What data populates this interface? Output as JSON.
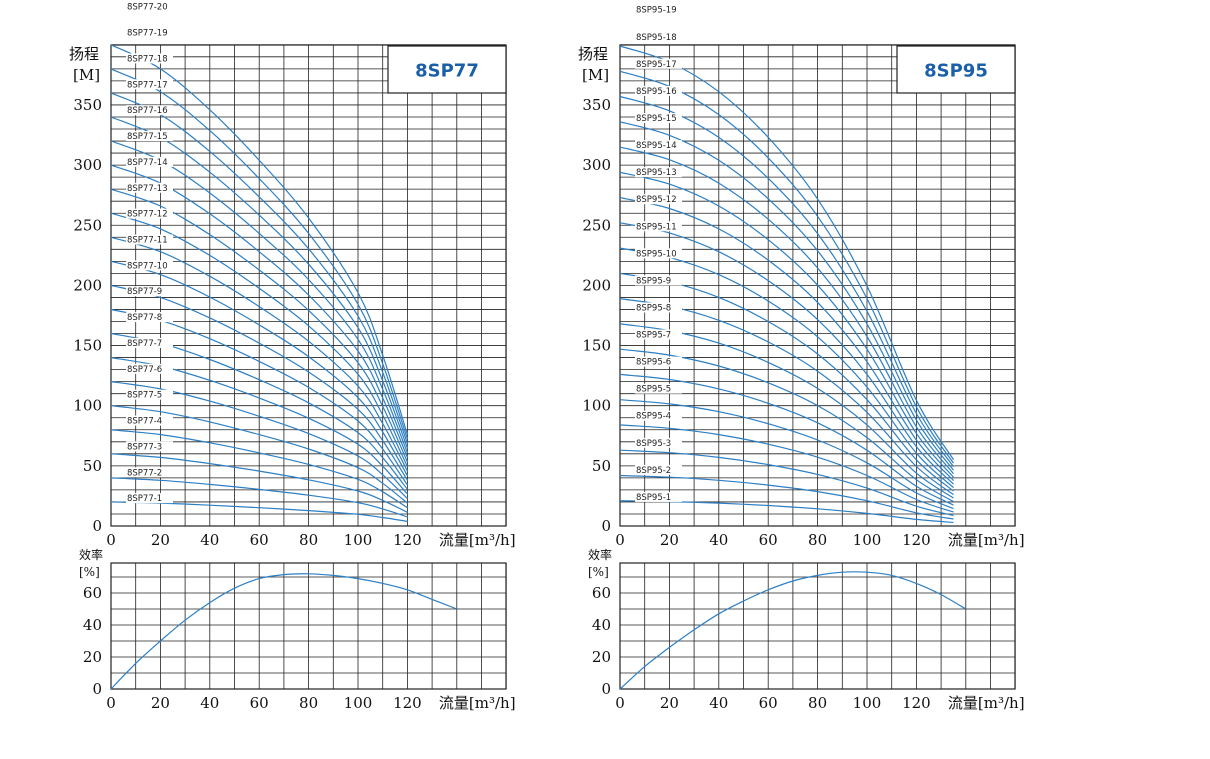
{
  "colors": {
    "curve": "#2c7fc4",
    "grid": "#222222",
    "title": "#1a5fa8"
  },
  "chart_data": [
    {
      "type": "line",
      "title": "8SP77",
      "panel": "head",
      "ylabel_line1": "扬程",
      "ylabel_line2": "[M]",
      "xlabel": "流量[m³/h]",
      "xlim": [
        0,
        120
      ],
      "ylim": [
        0,
        400
      ],
      "xticks": [
        0,
        20,
        40,
        60,
        80,
        100,
        120
      ],
      "yticks": [
        0,
        50,
        100,
        150,
        200,
        250,
        300,
        350
      ],
      "grid": true,
      "x": [
        0,
        20,
        40,
        60,
        80,
        100,
        110,
        120
      ],
      "base_curve_per_stage": [
        20.0,
        19.0,
        17.3,
        15.2,
        12.8,
        9.7,
        7.1,
        3.8
      ],
      "series": [
        {
          "name": "8SP77-1",
          "stages": 1
        },
        {
          "name": "8SP77-2",
          "stages": 2
        },
        {
          "name": "8SP77-3",
          "stages": 3
        },
        {
          "name": "8SP77-4",
          "stages": 4
        },
        {
          "name": "8SP77-5",
          "stages": 5
        },
        {
          "name": "8SP77-6",
          "stages": 6
        },
        {
          "name": "8SP77-7",
          "stages": 7
        },
        {
          "name": "8SP77-8",
          "stages": 8
        },
        {
          "name": "8SP77-9",
          "stages": 9
        },
        {
          "name": "8SP77-10",
          "stages": 10
        },
        {
          "name": "8SP77-11",
          "stages": 11
        },
        {
          "name": "8SP77-12",
          "stages": 12
        },
        {
          "name": "8SP77-13",
          "stages": 13
        },
        {
          "name": "8SP77-14",
          "stages": 14
        },
        {
          "name": "8SP77-15",
          "stages": 15
        },
        {
          "name": "8SP77-16",
          "stages": 16
        },
        {
          "name": "8SP77-17",
          "stages": 17
        },
        {
          "name": "8SP77-18",
          "stages": 18
        },
        {
          "name": "8SP77-19",
          "stages": 19
        },
        {
          "name": "8SP77-20",
          "stages": 20
        }
      ]
    },
    {
      "type": "line",
      "title": "",
      "panel": "efficiency",
      "ylabel_line1": "效率",
      "ylabel_line2": "[%]",
      "xlabel": "流量[m³/h]",
      "xlim": [
        0,
        160
      ],
      "ylim": [
        0,
        80
      ],
      "xticks": [
        0,
        20,
        40,
        60,
        80,
        100,
        120
      ],
      "yticks": [
        0,
        20,
        40,
        60
      ],
      "grid": true,
      "series": [
        {
          "x": [
            0,
            10,
            20,
            30,
            40,
            50,
            60,
            70,
            80,
            90,
            100,
            110,
            120,
            130,
            140
          ],
          "y": [
            0,
            16,
            30,
            43,
            54,
            63,
            69,
            71.5,
            72,
            71,
            69,
            66,
            62,
            56,
            50
          ]
        }
      ]
    },
    {
      "type": "line",
      "title": "8SP95",
      "panel": "head",
      "ylabel_line1": "扬程",
      "ylabel_line2": "[M]",
      "xlabel": "流量[m³/h]",
      "xlim": [
        0,
        160
      ],
      "ylim": [
        0,
        400
      ],
      "xticks": [
        0,
        20,
        40,
        60,
        80,
        100,
        120
      ],
      "yticks": [
        0,
        50,
        100,
        150,
        200,
        250,
        300,
        350
      ],
      "grid": true,
      "x": [
        0,
        20,
        40,
        60,
        80,
        100,
        120,
        135
      ],
      "base_curve_per_stage": [
        21.0,
        20.3,
        19.0,
        17.0,
        14.3,
        10.5,
        5.5,
        2.9
      ],
      "series": [
        {
          "name": "8SP95-1",
          "stages": 1
        },
        {
          "name": "8SP95-2",
          "stages": 2
        },
        {
          "name": "8SP95-3",
          "stages": 3
        },
        {
          "name": "8SP95-4",
          "stages": 4
        },
        {
          "name": "8SP95-5",
          "stages": 5
        },
        {
          "name": "8SP95-6",
          "stages": 6
        },
        {
          "name": "8SP95-7",
          "stages": 7
        },
        {
          "name": "8SP95-8",
          "stages": 8
        },
        {
          "name": "8SP95-9",
          "stages": 9
        },
        {
          "name": "8SP95-10",
          "stages": 10
        },
        {
          "name": "8SP95-11",
          "stages": 11
        },
        {
          "name": "8SP95-12",
          "stages": 12
        },
        {
          "name": "8SP95-13",
          "stages": 13
        },
        {
          "name": "8SP95-14",
          "stages": 14
        },
        {
          "name": "8SP95-15",
          "stages": 15
        },
        {
          "name": "8SP95-16",
          "stages": 16
        },
        {
          "name": "8SP95-17",
          "stages": 17
        },
        {
          "name": "8SP95-18",
          "stages": 18
        },
        {
          "name": "8SP95-19",
          "stages": 19
        }
      ]
    },
    {
      "type": "line",
      "title": "",
      "panel": "efficiency",
      "ylabel_line1": "效率",
      "ylabel_line2": "[%]",
      "xlabel": "流量[m³/h]",
      "xlim": [
        0,
        160
      ],
      "ylim": [
        0,
        80
      ],
      "xticks": [
        0,
        20,
        40,
        60,
        80,
        100,
        120
      ],
      "yticks": [
        0,
        20,
        40,
        60
      ],
      "grid": true,
      "series": [
        {
          "x": [
            0,
            10,
            20,
            30,
            40,
            50,
            60,
            70,
            80,
            90,
            100,
            110,
            120,
            130,
            140
          ],
          "y": [
            0,
            14,
            26,
            37,
            47,
            55,
            62,
            67.5,
            71,
            73,
            73,
            71,
            66,
            59,
            50
          ]
        }
      ]
    }
  ]
}
